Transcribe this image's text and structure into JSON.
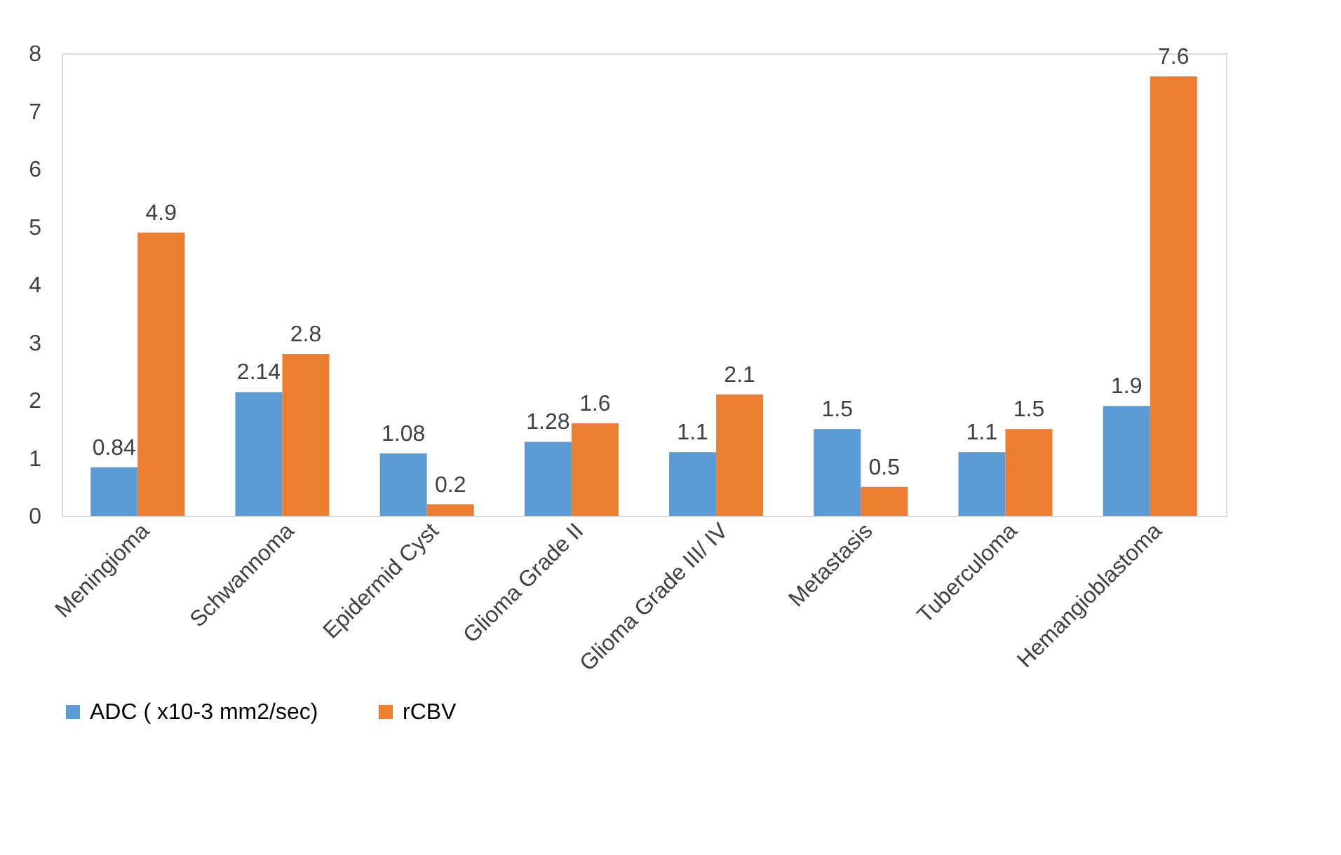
{
  "chart_data": {
    "type": "bar",
    "categories": [
      "Meningioma",
      "Schwannoma",
      "Epidermid Cyst",
      "Glioma Grade II",
      "Glioma Grade III/ IV",
      "Metastasis",
      "Tuberculoma",
      "Hemangioblastoma"
    ],
    "series": [
      {
        "name": "ADC ( x10-3 mm2/sec)",
        "color": "#5b9bd5",
        "values": [
          0.84,
          2.14,
          1.08,
          1.28,
          1.1,
          1.5,
          1.1,
          1.9
        ]
      },
      {
        "name": "rCBV",
        "color": "#ed7d31",
        "values": [
          4.9,
          2.8,
          0.2,
          1.6,
          2.1,
          0.5,
          1.5,
          7.6
        ]
      }
    ],
    "ylim": [
      0,
      8
    ],
    "yticks": [
      0,
      1,
      2,
      3,
      4,
      5,
      6,
      7,
      8
    ],
    "grid": false,
    "legend": "bottom",
    "data_labels": true
  }
}
